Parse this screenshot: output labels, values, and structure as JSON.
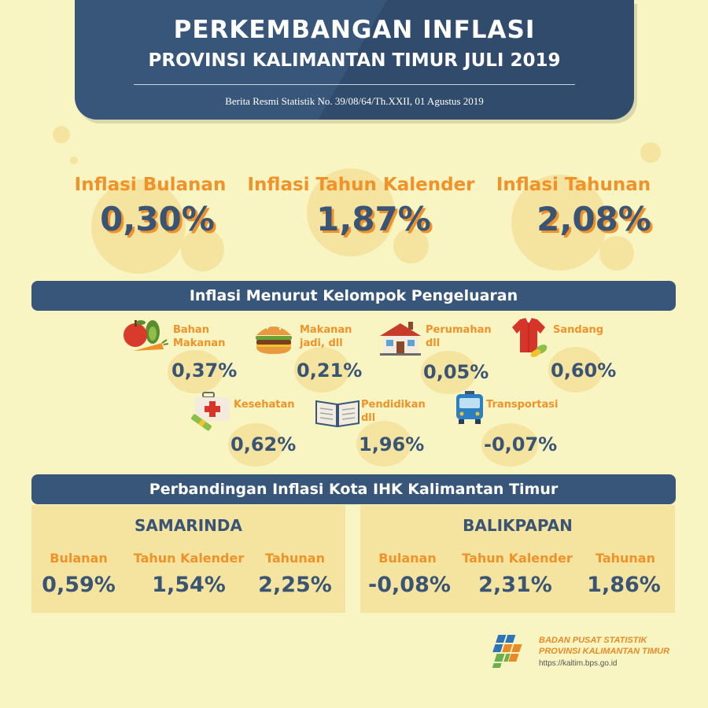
{
  "header": {
    "title_line1": "PERKEMBANGAN INFLASI",
    "title_line2": "PROVINSI KALIMANTAN TIMUR JULI 2019",
    "subtitle": "Berita Resmi Statistik No. 39/08/64/Th.XXII, 01 Agustus 2019"
  },
  "summary": [
    {
      "label": "Inflasi Bulanan",
      "value": "0,30%"
    },
    {
      "label": "Inflasi Tahun Kalender",
      "value": "1,87%"
    },
    {
      "label": "Inflasi Tahunan",
      "value": "2,08%"
    }
  ],
  "groups_section": {
    "title": "Inflasi Menurut Kelompok Pengeluaran",
    "items": [
      {
        "label": "Bahan\nMakanan",
        "value": "0,37%",
        "icon": "groceries-icon"
      },
      {
        "label": "Makanan\njadi, dll",
        "value": "0,21%",
        "icon": "burger-icon"
      },
      {
        "label": "Perumahan\ndll",
        "value": "0,05%",
        "icon": "house-icon"
      },
      {
        "label": "Sandang",
        "value": "0,60%",
        "icon": "shirt-icon"
      },
      {
        "label": "Kesehatan",
        "value": "0,62%",
        "icon": "medical-kit-icon"
      },
      {
        "label": "Pendidikan\ndll",
        "value": "1,96%",
        "icon": "open-book-icon"
      },
      {
        "label": "Transportasi",
        "value": "-0,07%",
        "icon": "bus-icon"
      }
    ]
  },
  "cities_section": {
    "title": "Perbandingan Inflasi Kota IHK Kalimantan Timur",
    "cities": [
      {
        "name": "SAMARINDA",
        "metrics": [
          {
            "label": "Bulanan",
            "value": "0,59%"
          },
          {
            "label": "Tahun Kalender",
            "value": "1,54%"
          },
          {
            "label": "Tahunan",
            "value": "2,25%"
          }
        ]
      },
      {
        "name": "BALIKPAPAN",
        "metrics": [
          {
            "label": "Bulanan",
            "value": "-0,08%"
          },
          {
            "label": "Tahun Kalender",
            "value": "2,31%"
          },
          {
            "label": "Tahunan",
            "value": "1,86%"
          }
        ]
      }
    ]
  },
  "footer": {
    "org_line1": "BADAN PUSAT STATISTIK",
    "org_line2": "PROVINSI KALIMANTAN TIMUR",
    "url": "https://kaltim.bps.go.id"
  },
  "colors": {
    "background": "#f9f5c2",
    "navy": "#37567a",
    "orange": "#f0922a",
    "panel": "#f5e3a0"
  }
}
